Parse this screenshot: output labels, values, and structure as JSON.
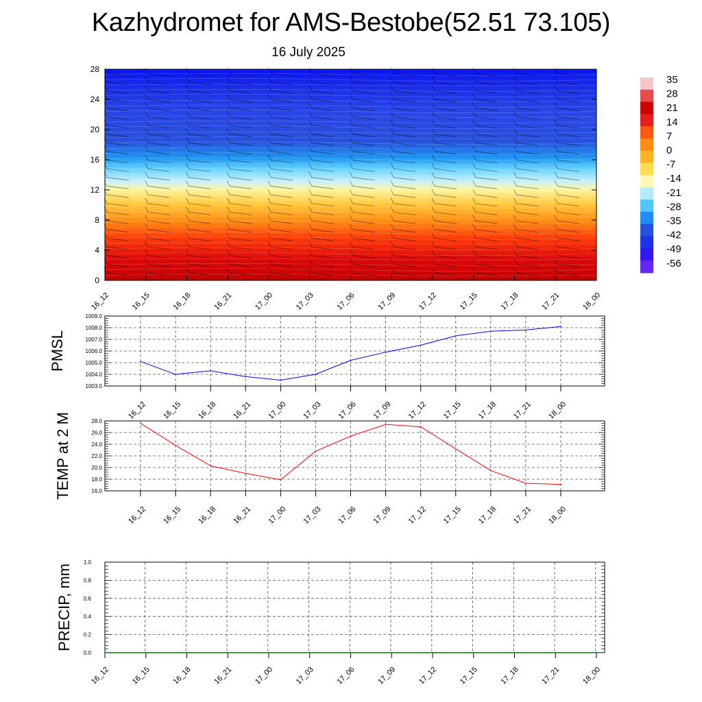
{
  "header": {
    "title": "Kazhydromet for AMS-Bestobe(52.51 73.105)",
    "subtitle": "16 July 2025"
  },
  "chart_data": [
    {
      "type": "heatmap",
      "name": "temperature-profile",
      "ylim": [
        0,
        28
      ],
      "yticks": [
        "0",
        "4",
        "8",
        "12",
        "16",
        "20",
        "24",
        "28"
      ],
      "x_labels": [
        "16_12",
        "16_15",
        "16_18",
        "16_21",
        "17_00",
        "17_03",
        "17_06",
        "17_09",
        "17_12",
        "17_15",
        "17_18",
        "17_21",
        "18_00"
      ],
      "colorbar_labels": [
        "35",
        "28",
        "21",
        "14",
        "7",
        "0",
        "-7",
        "-14",
        "-21",
        "-28",
        "-35",
        "-42",
        "-49",
        "-56"
      ],
      "colorbar_colors": [
        "#f4c6c6",
        "#e84b4b",
        "#cc0000",
        "#e61e1e",
        "#ff5a0f",
        "#ff8c14",
        "#ffb428",
        "#ffdc50",
        "#fff8b4",
        "#b4ecff",
        "#50c8ff",
        "#1e8cf0",
        "#2850dc",
        "#1e32e6",
        "#3219f0",
        "#6428f5"
      ]
    },
    {
      "type": "line",
      "name": "pmsl",
      "ylabel": "PMSL",
      "ylim": [
        1003.0,
        1009.0
      ],
      "yticks": [
        "1003.0",
        "1004.0",
        "1005.0",
        "1006.0",
        "1007.0",
        "1008.0",
        "1009.0"
      ],
      "categories": [
        "16_12",
        "16_15",
        "16_18",
        "16_21",
        "17_00",
        "17_03",
        "17_06",
        "17_09",
        "17_12",
        "17_15",
        "17_18",
        "17_21",
        "18_00"
      ],
      "values": [
        1005.1,
        1004.0,
        1004.3,
        1003.8,
        1003.5,
        1004.0,
        1005.2,
        1005.9,
        1006.5,
        1007.3,
        1007.7,
        1007.8,
        1008.1
      ],
      "color": "#0000ff",
      "grid": true
    },
    {
      "type": "line",
      "name": "temp-2m",
      "ylabel": "TEMP at 2 M",
      "ylim": [
        16.0,
        28.0
      ],
      "yticks": [
        "16.0",
        "18.0",
        "20.0",
        "22.0",
        "24.0",
        "26.0",
        "28.0"
      ],
      "categories": [
        "16_12",
        "16_15",
        "16_18",
        "16_21",
        "17_00",
        "17_03",
        "17_06",
        "17_09",
        "17_12",
        "17_15",
        "17_18",
        "17_21",
        "18_00"
      ],
      "values": [
        27.6,
        23.8,
        20.3,
        19.0,
        17.9,
        22.8,
        25.4,
        27.4,
        27.0,
        23.2,
        19.5,
        17.3,
        17.1
      ],
      "color": "#ff0000",
      "grid": true
    },
    {
      "type": "line",
      "name": "precip",
      "ylabel": "PRECIP, mm",
      "ylim": [
        0.0,
        1.0
      ],
      "yticks": [
        "0.0",
        "0.2",
        "0.4",
        "0.6",
        "0.8",
        "1.0"
      ],
      "categories": [
        "16_12",
        "16_15",
        "16_18",
        "16_21",
        "17_00",
        "17_03",
        "17_06",
        "17_09",
        "17_12",
        "17_15",
        "17_18",
        "17_21",
        "18_00"
      ],
      "values": [
        0,
        0,
        0,
        0,
        0,
        0,
        0,
        0,
        0,
        0,
        0,
        0,
        0
      ],
      "color": "#008000",
      "grid": true
    }
  ]
}
